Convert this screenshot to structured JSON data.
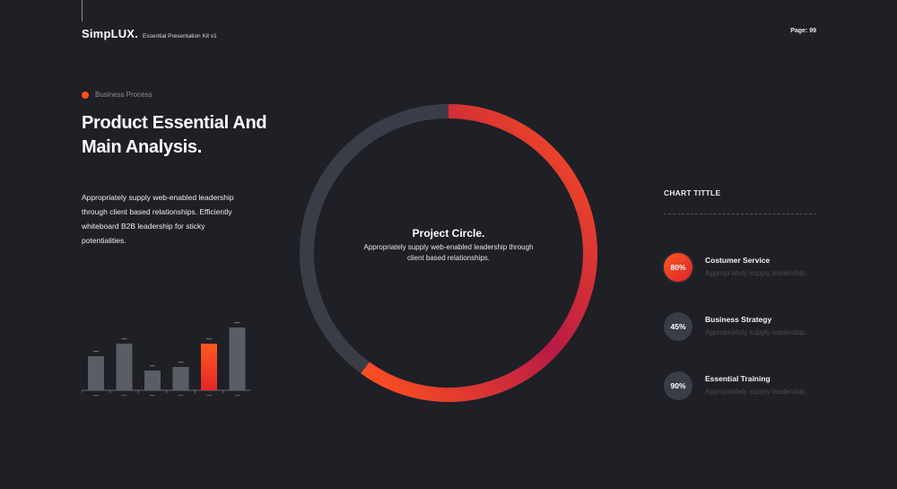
{
  "header": {
    "brand_name": "SimpLUX.",
    "brand_sub": "Essential Presentation Kit v1",
    "page_label": "Page:  99"
  },
  "section": {
    "tag": "Business Process",
    "title_line1": "Product Essential And",
    "title_line2": "Main Analysis.",
    "body": "Appropriately supply web-enabled leadership through client based relationships. Efficiently whiteboard B2B leadership for sticky potentialities."
  },
  "donut": {
    "title": "Project Circle.",
    "description": "Appropriately supply web-enabled leadership through client based relationships."
  },
  "side": {
    "chart_title": "CHART TITTLE",
    "stats": [
      {
        "value": "80%",
        "label": "Costumer Service",
        "desc": "Appropriately supply leadership."
      },
      {
        "value": "45%",
        "label": "Business Strategy",
        "desc": "Appropriately supply leadership."
      },
      {
        "value": "90%",
        "label": "Essential Training",
        "desc": "Appropriately supply leadership."
      }
    ]
  },
  "chart_data": [
    {
      "type": "bar",
      "highlight_index": 4,
      "colors": {
        "bar": "#5a5c66",
        "highlight_from": "#ff5a1e",
        "highlight_to": "#e4262a"
      },
      "values": [
        38,
        52,
        22,
        26,
        52,
        70
      ]
    },
    {
      "type": "pie",
      "variant": "donut-ring",
      "colors": {
        "track": "#3a3d47",
        "arc_from": "#ff521f",
        "arc_to": "#b81b45"
      },
      "progress": 0.6
    }
  ]
}
